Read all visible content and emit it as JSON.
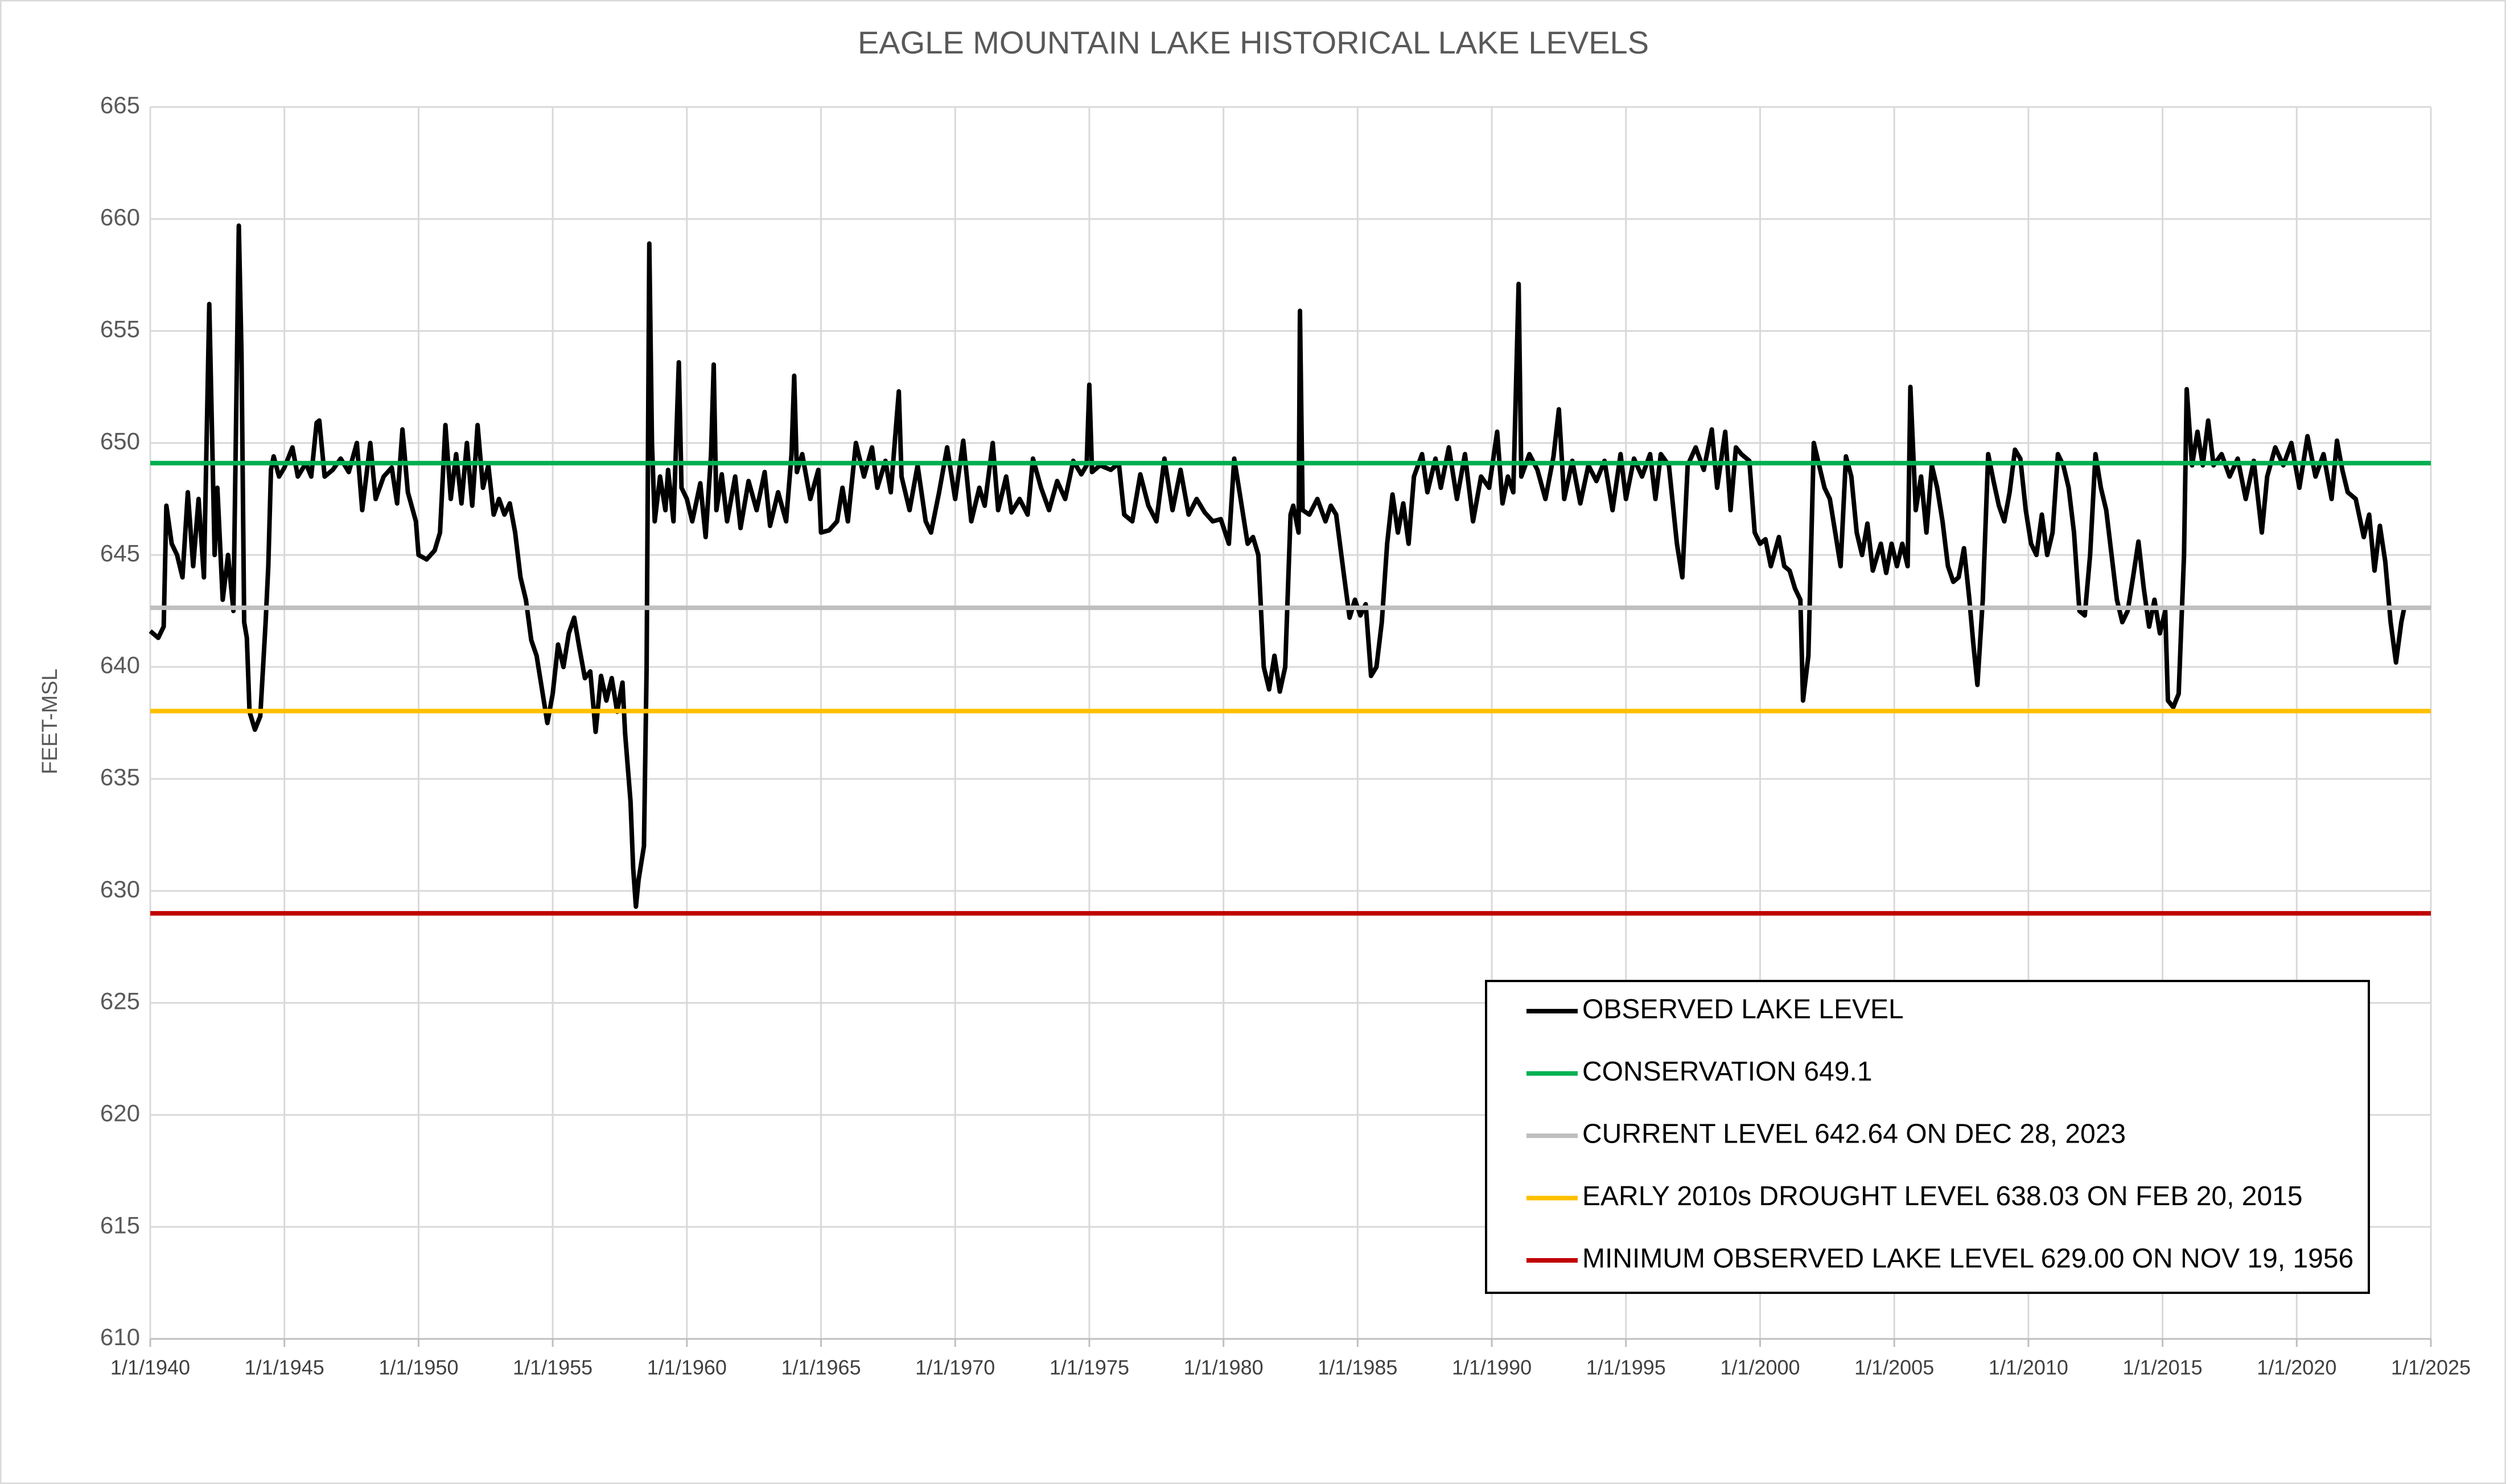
{
  "chart_data": {
    "type": "line",
    "title": "EAGLE MOUNTAIN LAKE HISTORICAL LAKE LEVELS",
    "y_label": "FEET-MSL",
    "xlim": [
      1940,
      2025
    ],
    "xticks": [
      {
        "value": 1940,
        "label": "1/1/1940"
      },
      {
        "value": 1945,
        "label": "1/1/1945"
      },
      {
        "value": 1950,
        "label": "1/1/1950"
      },
      {
        "value": 1955,
        "label": "1/1/1955"
      },
      {
        "value": 1960,
        "label": "1/1/1960"
      },
      {
        "value": 1965,
        "label": "1/1/1965"
      },
      {
        "value": 1970,
        "label": "1/1/1970"
      },
      {
        "value": 1975,
        "label": "1/1/1975"
      },
      {
        "value": 1980,
        "label": "1/1/1980"
      },
      {
        "value": 1985,
        "label": "1/1/1985"
      },
      {
        "value": 1990,
        "label": "1/1/1990"
      },
      {
        "value": 1995,
        "label": "1/1/1995"
      },
      {
        "value": 2000,
        "label": "1/1/2000"
      },
      {
        "value": 2005,
        "label": "1/1/2005"
      },
      {
        "value": 2010,
        "label": "1/1/2010"
      },
      {
        "value": 2015,
        "label": "1/1/2015"
      },
      {
        "value": 2020,
        "label": "1/1/2020"
      },
      {
        "value": 2025,
        "label": "1/1/2025"
      }
    ],
    "ylim": [
      610,
      665
    ],
    "yticks": [
      610,
      615,
      620,
      625,
      630,
      635,
      640,
      645,
      650,
      655,
      660,
      665
    ],
    "grid": true,
    "legend": "bottom-right",
    "series": [
      {
        "name": "OBSERVED LAKE LEVEL",
        "color": "#000000",
        "x": [
          1940.0,
          1940.3,
          1940.5,
          1940.6,
          1940.8,
          1941.0,
          1941.2,
          1941.4,
          1941.6,
          1941.8,
          1942.0,
          1942.2,
          1942.4,
          1942.5,
          1942.7,
          1942.9,
          1943.1,
          1943.3,
          1943.4,
          1943.5,
          1943.6,
          1943.7,
          1943.9,
          1944.1,
          1944.3,
          1944.4,
          1944.5,
          1944.6,
          1944.8,
          1945.0,
          1945.3,
          1945.5,
          1945.8,
          1946.0,
          1946.2,
          1946.3,
          1946.5,
          1946.8,
          1947.1,
          1947.4,
          1947.7,
          1947.9,
          1948.2,
          1948.4,
          1948.7,
          1949.0,
          1949.2,
          1949.4,
          1949.6,
          1949.9,
          1950.0,
          1950.3,
          1950.6,
          1950.8,
          1951.0,
          1951.2,
          1951.4,
          1951.6,
          1951.8,
          1952.0,
          1952.2,
          1952.4,
          1952.6,
          1952.8,
          1953.0,
          1953.2,
          1953.4,
          1953.6,
          1953.8,
          1954.0,
          1954.2,
          1954.4,
          1954.6,
          1954.8,
          1955.0,
          1955.2,
          1955.4,
          1955.6,
          1955.8,
          1956.0,
          1956.2,
          1956.4,
          1956.6,
          1956.8,
          1957.0,
          1957.2,
          1957.4,
          1957.6,
          1957.7,
          1957.9,
          1958.0,
          1958.1,
          1958.2,
          1958.4,
          1958.5,
          1958.6,
          1958.7,
          1958.8,
          1959.0,
          1959.2,
          1959.3,
          1959.5,
          1959.7,
          1959.8,
          1960.0,
          1960.2,
          1960.5,
          1960.7,
          1960.9,
          1961.0,
          1961.1,
          1961.3,
          1961.5,
          1961.8,
          1962.0,
          1962.3,
          1962.6,
          1962.9,
          1963.1,
          1963.4,
          1963.7,
          1963.9,
          1964.0,
          1964.1,
          1964.3,
          1964.6,
          1964.9,
          1965.0,
          1965.3,
          1965.6,
          1965.8,
          1966.0,
          1966.3,
          1966.6,
          1966.9,
          1967.1,
          1967.4,
          1967.6,
          1967.9,
          1968.0,
          1968.3,
          1968.6,
          1968.9,
          1969.1,
          1969.4,
          1969.7,
          1970.0,
          1970.3,
          1970.6,
          1970.9,
          1971.1,
          1971.4,
          1971.6,
          1971.9,
          1972.1,
          1972.4,
          1972.7,
          1972.9,
          1973.2,
          1973.5,
          1973.8,
          1974.1,
          1974.4,
          1974.7,
          1974.9,
          1975.0,
          1975.1,
          1975.4,
          1975.8,
          1976.1,
          1976.3,
          1976.6,
          1976.9,
          1977.2,
          1977.5,
          1977.8,
          1978.1,
          1978.4,
          1978.7,
          1979.0,
          1979.3,
          1979.6,
          1979.9,
          1980.2,
          1980.4,
          1980.6,
          1980.9,
          1981.1,
          1981.3,
          1981.5,
          1981.7,
          1981.9,
          1982.1,
          1982.3,
          1982.5,
          1982.6,
          1982.8,
          1982.85,
          1982.95,
          1983.2,
          1983.5,
          1983.8,
          1984.0,
          1984.2,
          1984.5,
          1984.7,
          1984.9,
          1985.1,
          1985.3,
          1985.5,
          1985.7,
          1985.9,
          1986.1,
          1986.3,
          1986.5,
          1986.7,
          1986.9,
          1987.1,
          1987.4,
          1987.6,
          1987.9,
          1988.1,
          1988.4,
          1988.7,
          1989.0,
          1989.3,
          1989.6,
          1989.9,
          1990.2,
          1990.4,
          1990.6,
          1990.8,
          1991.0,
          1991.1,
          1991.4,
          1991.7,
          1992.0,
          1992.3,
          1992.5,
          1992.7,
          1993.0,
          1993.3,
          1993.6,
          1993.9,
          1994.2,
          1994.5,
          1994.8,
          1995.0,
          1995.3,
          1995.6,
          1995.9,
          1996.1,
          1996.3,
          1996.6,
          1996.9,
          1997.1,
          1997.3,
          1997.6,
          1997.9,
          1998.2,
          1998.4,
          1998.7,
          1998.9,
          1999.1,
          1999.3,
          1999.6,
          1999.8,
          2000.0,
          2000.2,
          2000.4,
          2000.7,
          2000.9,
          2001.1,
          2001.3,
          2001.5,
          2001.6,
          2001.8,
          2002.0,
          2002.2,
          2002.4,
          2002.6,
          2002.8,
          2003.0,
          2003.2,
          2003.4,
          2003.6,
          2003.8,
          2004.0,
          2004.2,
          2004.5,
          2004.7,
          2004.9,
          2005.1,
          2005.3,
          2005.5,
          2005.6,
          2005.8,
          2006.0,
          2006.2,
          2006.4,
          2006.6,
          2006.8,
          2007.0,
          2007.2,
          2007.4,
          2007.6,
          2007.8,
          2007.95,
          2008.1,
          2008.3,
          2008.5,
          2008.7,
          2008.9,
          2009.1,
          2009.3,
          2009.5,
          2009.7,
          2009.9,
          2010.1,
          2010.3,
          2010.5,
          2010.7,
          2010.9,
          2011.1,
          2011.3,
          2011.5,
          2011.7,
          2011.9,
          2012.1,
          2012.3,
          2012.5,
          2012.7,
          2012.9,
          2013.1,
          2013.3,
          2013.5,
          2013.7,
          2013.9,
          2014.1,
          2014.3,
          2014.5,
          2014.7,
          2014.9,
          2015.1,
          2015.2,
          2015.4,
          2015.6,
          2015.8,
          2015.9,
          2016.1,
          2016.3,
          2016.5,
          2016.7,
          2016.9,
          2017.2,
          2017.5,
          2017.8,
          2018.1,
          2018.4,
          2018.7,
          2018.9,
          2019.2,
          2019.5,
          2019.8,
          2020.1,
          2020.4,
          2020.7,
          2021.0,
          2021.3,
          2021.5,
          2021.7,
          2021.9,
          2022.2,
          2022.5,
          2022.7,
          2022.9,
          2023.1,
          2023.3,
          2023.5,
          2023.7,
          2023.9,
          2024.0
        ],
        "values": [
          641.6,
          641.3,
          641.8,
          647.2,
          645.5,
          645.0,
          644.0,
          647.8,
          644.5,
          647.5,
          644.0,
          656.2,
          645.0,
          648.0,
          643.0,
          645.0,
          642.5,
          659.7,
          654.0,
          642.0,
          641.3,
          638.0,
          637.2,
          637.8,
          642.0,
          644.5,
          648.8,
          649.4,
          648.5,
          648.9,
          649.8,
          648.5,
          649.1,
          648.5,
          650.9,
          651.0,
          648.5,
          648.8,
          649.3,
          648.7,
          650.0,
          647.0,
          650.0,
          647.5,
          648.5,
          648.9,
          647.3,
          650.6,
          647.8,
          646.5,
          645.0,
          644.8,
          645.2,
          646.0,
          650.8,
          647.5,
          649.5,
          647.3,
          650.0,
          647.2,
          650.8,
          648.0,
          649.0,
          646.8,
          647.5,
          646.8,
          647.3,
          646.0,
          644.0,
          643.0,
          641.2,
          640.5,
          639.0,
          637.5,
          638.8,
          641.0,
          640.0,
          641.5,
          642.2,
          640.8,
          639.5,
          639.8,
          637.1,
          639.6,
          638.5,
          639.5,
          638.0,
          639.3,
          637.0,
          634.0,
          631.0,
          629.3,
          630.5,
          632.0,
          640.0,
          658.9,
          650.0,
          646.5,
          648.5,
          647.0,
          648.8,
          646.5,
          653.6,
          648.0,
          647.5,
          646.5,
          648.2,
          645.8,
          649.5,
          653.5,
          647.0,
          648.6,
          646.5,
          648.5,
          646.2,
          648.3,
          647.0,
          648.7,
          646.3,
          647.8,
          646.5,
          649.5,
          653.0,
          648.7,
          649.5,
          647.5,
          648.8,
          646.0,
          646.1,
          646.5,
          648.0,
          646.5,
          650.0,
          648.5,
          649.8,
          648.0,
          649.2,
          647.8,
          652.3,
          648.5,
          647.0,
          649.0,
          646.5,
          646.0,
          647.8,
          649.8,
          647.5,
          650.1,
          646.5,
          648.0,
          647.2,
          650.0,
          647.0,
          648.5,
          646.9,
          647.5,
          646.8,
          649.3,
          648.0,
          647.0,
          648.3,
          647.5,
          649.2,
          648.6,
          649.0,
          652.6,
          648.7,
          649.0,
          648.8,
          649.1,
          646.8,
          646.5,
          648.6,
          647.2,
          646.5,
          649.3,
          647.0,
          648.8,
          646.8,
          647.5,
          646.9,
          646.5,
          646.6,
          645.5,
          649.3,
          647.8,
          645.5,
          645.8,
          645.0,
          640.0,
          639.0,
          640.5,
          638.9,
          640.0,
          646.8,
          647.2,
          646.0,
          655.9,
          647.0,
          646.8,
          647.5,
          646.5,
          647.2,
          646.8,
          644.0,
          642.2,
          643.0,
          642.3,
          642.8,
          639.6,
          640.0,
          642.0,
          645.5,
          647.7,
          646.0,
          647.3,
          645.5,
          648.5,
          649.5,
          647.8,
          649.3,
          648.0,
          649.8,
          647.5,
          649.5,
          646.5,
          648.5,
          648.0,
          650.5,
          647.3,
          648.5,
          647.8,
          657.1,
          648.5,
          649.5,
          648.8,
          647.5,
          649.4,
          651.5,
          647.5,
          649.2,
          647.3,
          649.0,
          648.3,
          649.2,
          647.0,
          649.5,
          647.5,
          649.3,
          648.5,
          649.5,
          647.5,
          649.5,
          649.0,
          645.5,
          644.0,
          649.0,
          649.8,
          648.8,
          650.6,
          648.0,
          650.5,
          647.0,
          649.8,
          649.5,
          649.2,
          646.0,
          645.5,
          645.7,
          644.5,
          645.8,
          644.5,
          644.3,
          643.5,
          643.0,
          638.5,
          640.5,
          650.0,
          649.0,
          648.0,
          647.5,
          646.0,
          644.5,
          649.4,
          648.5,
          646.0,
          645.0,
          646.4,
          644.3,
          645.5,
          644.2,
          645.5,
          644.5,
          645.5,
          644.5,
          652.5,
          647.0,
          648.5,
          646.0,
          649.0,
          648.0,
          646.5,
          644.5,
          643.8,
          644.0,
          645.3,
          643.0,
          641.0,
          639.2,
          643.0,
          649.5,
          648.3,
          647.2,
          646.5,
          647.8,
          649.7,
          649.3,
          647.0,
          645.5,
          645.0,
          646.8,
          645.0,
          646.0,
          649.5,
          649.0,
          648.0,
          646.0,
          642.5,
          642.3,
          645.0,
          649.5,
          648.0,
          647.0,
          645.0,
          643.0,
          642.0,
          642.5,
          644.0,
          645.6,
          643.5,
          641.8,
          643.0,
          641.5,
          642.5,
          638.5,
          638.2,
          638.8,
          645.0,
          652.4,
          649.0,
          650.5,
          649.0,
          651.0,
          649.0,
          649.5,
          648.5,
          649.3,
          647.5,
          649.2,
          646.0,
          648.5,
          649.8,
          649.0,
          650.0,
          648.0,
          650.3,
          648.5,
          649.5,
          647.5,
          650.1,
          648.8,
          647.8,
          647.5,
          645.8,
          646.8,
          644.3,
          646.3,
          644.7,
          642.0,
          640.2,
          642.0,
          642.6
        ]
      }
    ],
    "reference_lines": [
      {
        "name": "CONSERVATION 649.1",
        "color": "#00b050",
        "value": 649.1
      },
      {
        "name": "CURRENT LEVEL 642.64 ON DEC 28, 2023",
        "color": "#bfbfbf",
        "value": 642.64
      },
      {
        "name": "EARLY 2010s DROUGHT LEVEL 638.03 ON FEB 20, 2015",
        "color": "#ffc000",
        "value": 638.03
      },
      {
        "name": "MINIMUM OBSERVED LAKE LEVEL 629.00 ON NOV 19, 1956",
        "color": "#c00000",
        "value": 629.0
      }
    ]
  }
}
